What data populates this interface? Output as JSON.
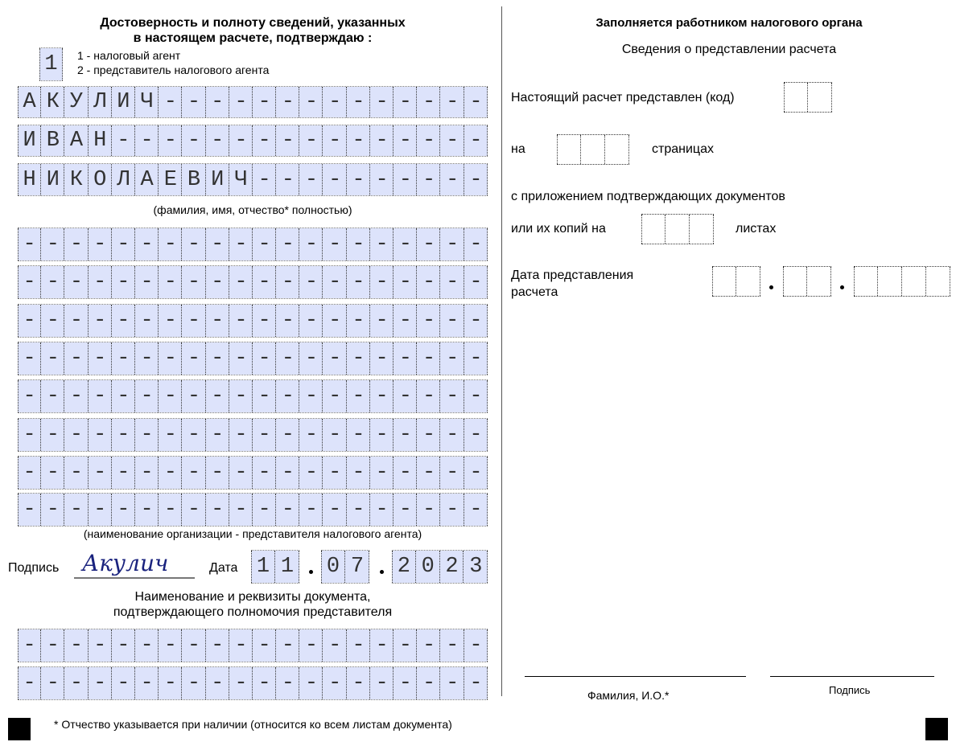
{
  "left": {
    "title_line1": "Достоверность и полноту сведений, указанных",
    "title_line2": "в настоящем расчете, подтверждаю :",
    "signer_type_value": "1",
    "signer_option_1": "1 - налоговый агент",
    "signer_option_2": "2 - представитель налогового агента",
    "name_rows": [
      "АКУЛИЧ--------------",
      "ИВАН----------------",
      "НИКОЛАЕВИЧ----------"
    ],
    "name_caption": "(фамилия, имя, отчество* полностью)",
    "org_rows": [
      "--------------------",
      "--------------------",
      "--------------------",
      "--------------------",
      "--------------------",
      "--------------------",
      "--------------------",
      "--------------------"
    ],
    "org_caption": "(наименование организации - представителя налогового агента)",
    "signature_label": "Подпись",
    "signature_value": "Акулич",
    "date_label": "Дата",
    "date_day": "11",
    "date_month": "07",
    "date_year": "2023",
    "doc_caption_line1": "Наименование и реквизиты документа,",
    "doc_caption_line2": "подтверждающего полномочия представителя",
    "doc_rows": [
      "--------------------",
      "--------------------"
    ]
  },
  "right": {
    "title": "Заполняется работником налогового органа",
    "subtitle": "Сведения о представлении расчета",
    "code_label": "Настоящий расчет представлен  (код)",
    "code_value": "  ",
    "pages_prefix": "на",
    "pages_value": "   ",
    "pages_suffix": "страницах",
    "attach_line1": "с приложением подтверждающих документов",
    "attach_prefix": "или их копий на",
    "attach_value": "   ",
    "attach_suffix": "листах",
    "date_label_line1": "Дата представления",
    "date_label_line2": "расчета",
    "date_day": "  ",
    "date_month": "  ",
    "date_year": "    ",
    "fio_label": "Фамилия, И.О.*",
    "sign_label": "Подпись"
  },
  "footnote": "* Отчество указывается при наличии (относится ко всем листам документа)",
  "colors": {
    "cell_fill": "#dde3fb",
    "signature_ink": "#1a237e"
  }
}
